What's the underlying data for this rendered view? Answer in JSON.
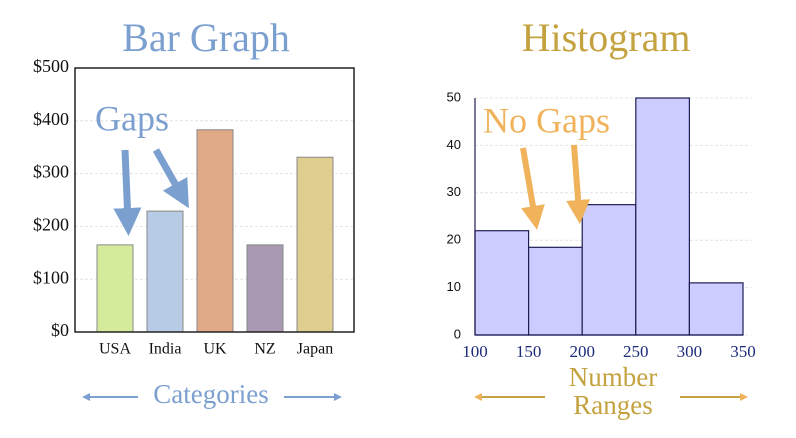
{
  "chart_data": [
    {
      "type": "bar",
      "title": "Bar Graph",
      "categories": [
        "USA",
        "India",
        "UK",
        "NZ",
        "Japan"
      ],
      "values": [
        165,
        229,
        383,
        165,
        331
      ],
      "colors": [
        "#d5eb9c",
        "#b8cbe5",
        "#e0aa88",
        "#a999b1",
        "#dfce90"
      ],
      "ylim": [
        0,
        500
      ],
      "yticks": [
        {
          "value": 0,
          "label": "$0"
        },
        {
          "value": 100,
          "label": "$100"
        },
        {
          "value": 200,
          "label": "$200"
        },
        {
          "value": 300,
          "label": "$300"
        },
        {
          "value": 400,
          "label": "$400"
        },
        {
          "value": 500,
          "label": "$500"
        }
      ],
      "grid": true,
      "annotation": "Gaps",
      "xlabel": "Categories"
    },
    {
      "type": "histogram",
      "title": "Histogram",
      "bins": [
        100,
        150,
        200,
        250,
        300,
        350
      ],
      "values": [
        22,
        18.5,
        27.5,
        50,
        11
      ],
      "color": "#ccccff",
      "xlim": [
        100,
        350
      ],
      "xticks": [
        100,
        150,
        200,
        250,
        300,
        350
      ],
      "ylim": [
        0,
        50
      ],
      "yticks": [
        0,
        10,
        20,
        30,
        40,
        50
      ],
      "grid": true,
      "annotation": "No Gaps",
      "xlabel_lines": [
        "Number",
        "Ranges"
      ]
    }
  ]
}
